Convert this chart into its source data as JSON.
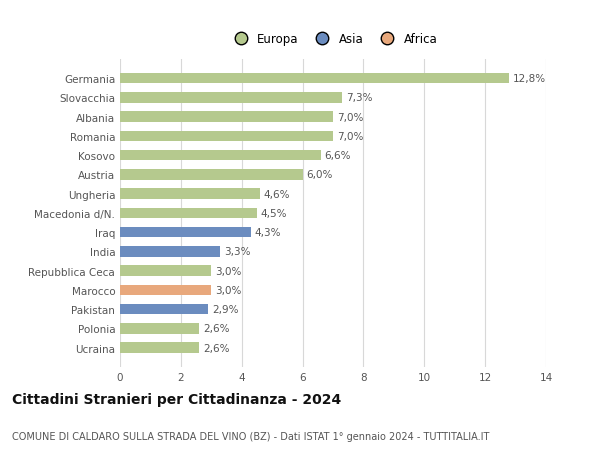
{
  "categories": [
    "Germania",
    "Slovacchia",
    "Albania",
    "Romania",
    "Kosovo",
    "Austria",
    "Ungheria",
    "Macedonia d/N.",
    "Iraq",
    "India",
    "Repubblica Ceca",
    "Marocco",
    "Pakistan",
    "Polonia",
    "Ucraina"
  ],
  "values": [
    12.8,
    7.3,
    7.0,
    7.0,
    6.6,
    6.0,
    4.6,
    4.5,
    4.3,
    3.3,
    3.0,
    3.0,
    2.9,
    2.6,
    2.6
  ],
  "labels": [
    "12,8%",
    "7,3%",
    "7,0%",
    "7,0%",
    "6,6%",
    "6,0%",
    "4,6%",
    "4,5%",
    "4,3%",
    "3,3%",
    "3,0%",
    "3,0%",
    "2,9%",
    "2,6%",
    "2,6%"
  ],
  "continents": [
    "Europa",
    "Europa",
    "Europa",
    "Europa",
    "Europa",
    "Europa",
    "Europa",
    "Europa",
    "Asia",
    "Asia",
    "Europa",
    "Africa",
    "Asia",
    "Europa",
    "Europa"
  ],
  "colors": {
    "Europa": "#b5c98e",
    "Asia": "#6b8cbf",
    "Africa": "#e8a87c"
  },
  "legend_order": [
    "Europa",
    "Asia",
    "Africa"
  ],
  "xlim": [
    0,
    14
  ],
  "xticks": [
    0,
    2,
    4,
    6,
    8,
    10,
    12,
    14
  ],
  "title": "Cittadini Stranieri per Cittadinanza - 2024",
  "subtitle": "COMUNE DI CALDARO SULLA STRADA DEL VINO (BZ) - Dati ISTAT 1° gennaio 2024 - TUTTITALIA.IT",
  "background_color": "#ffffff",
  "grid_color": "#d8d8d8",
  "bar_height": 0.55,
  "label_fontsize": 7.5,
  "ytick_fontsize": 7.5,
  "xtick_fontsize": 7.5,
  "title_fontsize": 10,
  "subtitle_fontsize": 7,
  "legend_fontsize": 8.5
}
